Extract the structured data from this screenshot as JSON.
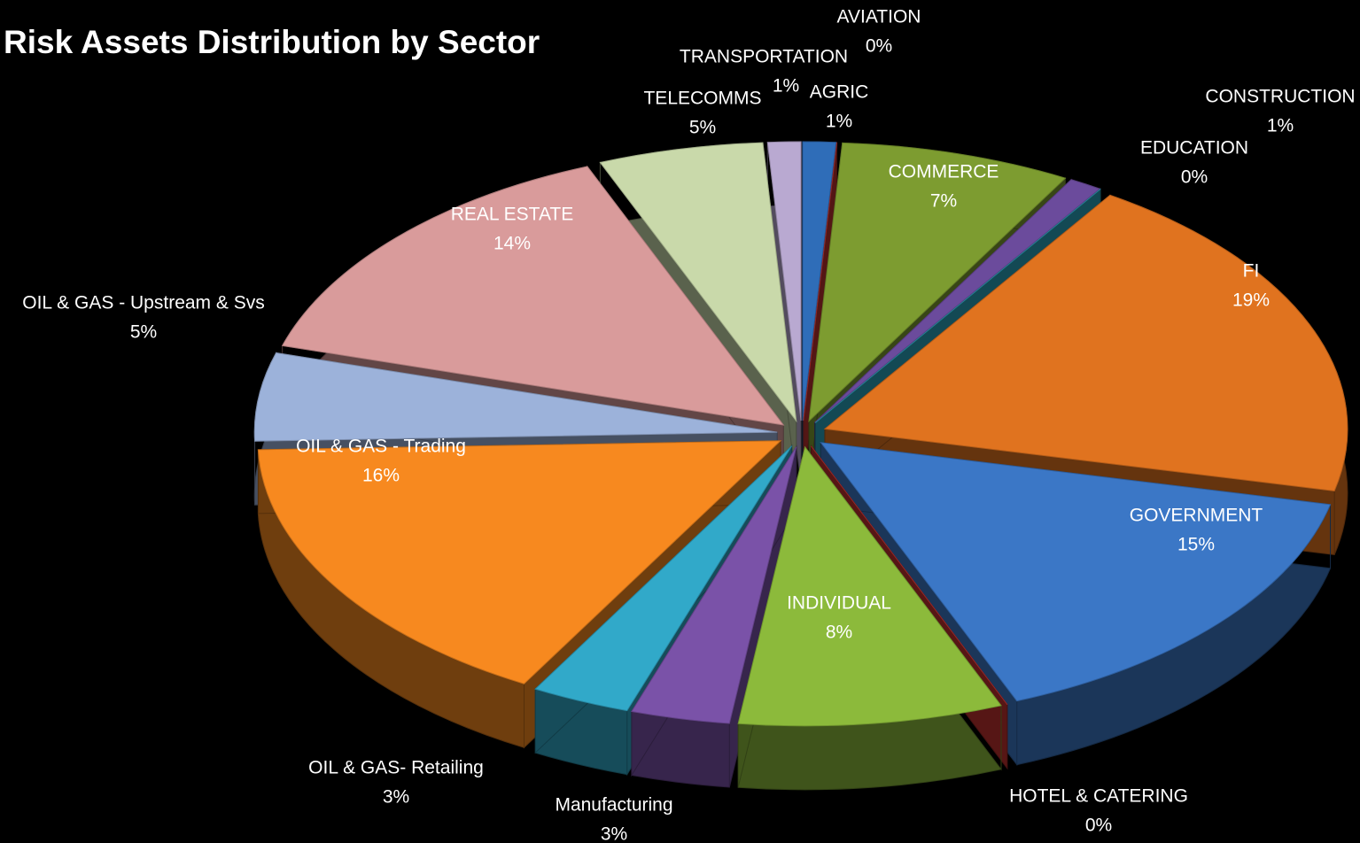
{
  "chart_data": {
    "type": "pie",
    "title": "Risk Assets Distribution by Sector",
    "categories": [
      "AGRIC",
      "AVIATION",
      "COMMERCE",
      "CONSTRUCTION",
      "EDUCATION",
      "FI",
      "GOVERNMENT",
      "HOTEL & CATERING",
      "INDIVIDUAL",
      "Manufacturing",
      "OIL & GAS- Retailing",
      "OIL & GAS - Trading",
      "OIL & GAS - Upstream & Svs",
      "REAL ESTATE",
      "TELECOMMS",
      "TRANSPORTATION"
    ],
    "values": [
      1,
      0,
      7,
      1,
      0,
      19,
      15,
      0,
      8,
      3,
      3,
      16,
      5,
      14,
      5,
      1
    ],
    "value_labels": [
      "1%",
      "0%",
      "7%",
      "1%",
      "0%",
      "19%",
      "15%",
      "0%",
      "8%",
      "3%",
      "3%",
      "16%",
      "5%",
      "14%",
      "5%",
      "1%"
    ],
    "colors": [
      "#2f6db8",
      "#b8312f",
      "#7d9c30",
      "#6b4b9c",
      "#2aa3bb",
      "#e0731f",
      "#3b77c6",
      "#c0302e",
      "#8cba3b",
      "#7a52a8",
      "#31a9c9",
      "#f7891f",
      "#9cb2da",
      "#d99b9b",
      "#c9d9aa",
      "#b9a9d1"
    ]
  }
}
